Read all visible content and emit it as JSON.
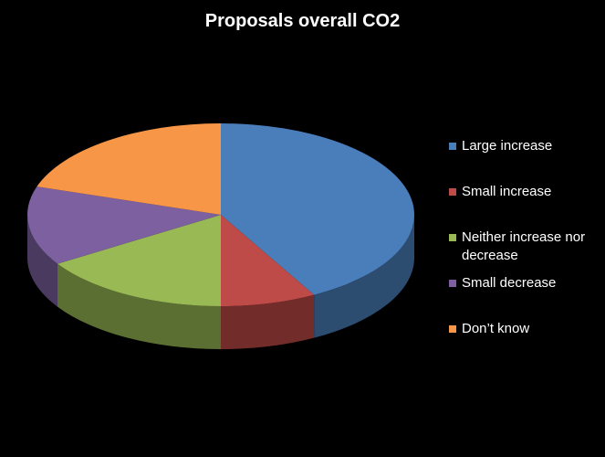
{
  "chart_data": {
    "type": "pie",
    "title": "Proposals overall CO2",
    "categories": [
      "Large increase",
      "Small increase",
      "Neither increase nor decrease",
      "Small decrease",
      "Don’t know"
    ],
    "values": [
      42,
      8,
      16,
      14,
      20
    ],
    "colors": [
      "#4a7ebb",
      "#be4b48",
      "#98b954",
      "#7d60a0",
      "#f79646"
    ],
    "legend": "right"
  }
}
